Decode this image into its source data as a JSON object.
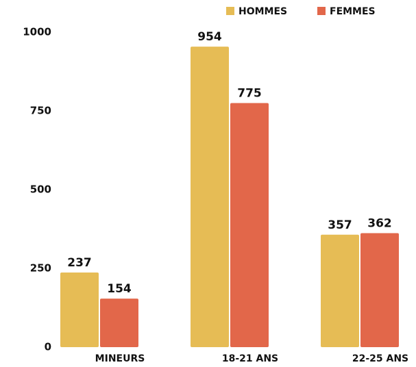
{
  "chart_data": {
    "type": "bar",
    "categories": [
      "MINEURS",
      "18-21 ANS",
      "22-25 ANS"
    ],
    "series": [
      {
        "name": "HOMMES",
        "color": "#E6BC55",
        "values": [
          237,
          954,
          357
        ]
      },
      {
        "name": "FEMMES",
        "color": "#E2674A",
        "values": [
          154,
          775,
          362
        ]
      }
    ],
    "ylim": [
      0,
      1000
    ],
    "yticks": [
      0,
      250,
      500,
      750,
      1000
    ],
    "grid": false,
    "legend": "top-right"
  }
}
